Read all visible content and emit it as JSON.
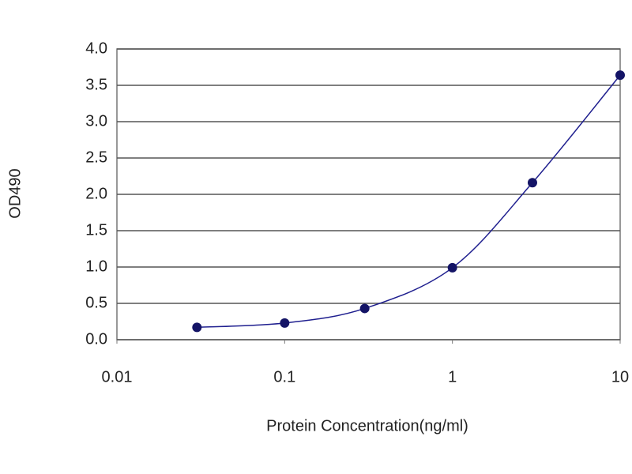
{
  "chart_data": {
    "type": "line",
    "x_label": "Protein Concentration(ng/ml)",
    "y_label": "OD490",
    "x": [
      0.03,
      0.1,
      0.3,
      1,
      3,
      10
    ],
    "series": [
      {
        "color": "#1f1f8f",
        "values": [
          0.17,
          0.23,
          0.43,
          0.99,
          2.16,
          3.64
        ]
      }
    ],
    "xscale": "log",
    "smooth": true,
    "xlim": [
      0.01,
      10
    ],
    "xticks": [
      0.01,
      0.1,
      1,
      10
    ],
    "ylim": [
      0,
      4
    ],
    "yticks": [
      {
        "value": 0,
        "label": "0.0"
      },
      0.5,
      {
        "value": 1,
        "label": "1.0"
      },
      1.5,
      {
        "value": 2,
        "label": "2.0"
      },
      2.5,
      {
        "value": 3,
        "label": "3.0"
      },
      3.5,
      {
        "value": 4,
        "label": "4.0"
      }
    ],
    "grid": true
  }
}
